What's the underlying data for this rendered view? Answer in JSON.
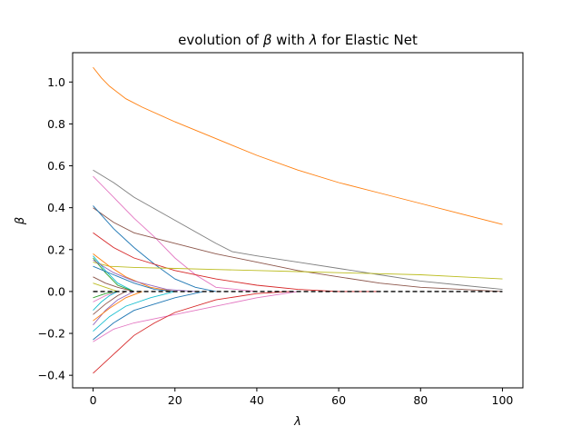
{
  "chart_data": {
    "type": "line",
    "title": "evolution of β with λ for Elastic Net",
    "title_parts": {
      "pre": "evolution of ",
      "beta": "β",
      "mid": " with ",
      "lambda": "λ",
      "post": " for Elastic Net"
    },
    "xlabel": "λ",
    "ylabel": "β",
    "xlim": [
      -5,
      105
    ],
    "ylim": [
      -0.46,
      1.14
    ],
    "xticks": [
      0,
      20,
      40,
      60,
      80,
      100
    ],
    "xtick_labels": [
      "0",
      "20",
      "40",
      "60",
      "80",
      "100"
    ],
    "yticks": [
      -0.4,
      -0.2,
      0.0,
      0.2,
      0.4,
      0.6,
      0.8,
      1.0
    ],
    "ytick_labels": [
      "−0.4",
      "−0.2",
      "0.0",
      "0.2",
      "0.4",
      "0.6",
      "0.8",
      "1.0"
    ],
    "grid": false,
    "reference_line": {
      "y": 0,
      "style": "dashed",
      "color": "#000000"
    },
    "series": [
      {
        "color": "#ff7f0e",
        "x": [
          0,
          2,
          4,
          8,
          12,
          20,
          30,
          40,
          50,
          60,
          70,
          80,
          90,
          100
        ],
        "y": [
          1.07,
          1.02,
          0.98,
          0.92,
          0.88,
          0.81,
          0.73,
          0.65,
          0.58,
          0.52,
          0.47,
          0.42,
          0.37,
          0.32
        ]
      },
      {
        "color": "#7f7f7f",
        "x": [
          0,
          5,
          10,
          20,
          30,
          34,
          40,
          50,
          60,
          70,
          80,
          90,
          100
        ],
        "y": [
          0.58,
          0.52,
          0.45,
          0.34,
          0.23,
          0.19,
          0.17,
          0.14,
          0.11,
          0.08,
          0.05,
          0.03,
          0.01
        ]
      },
      {
        "color": "#e377c2",
        "x": [
          0,
          5,
          10,
          15,
          20,
          25,
          30,
          40
        ],
        "y": [
          0.55,
          0.45,
          0.35,
          0.26,
          0.16,
          0.08,
          0.02,
          0
        ]
      },
      {
        "color": "#8c564b",
        "x": [
          0,
          5,
          10,
          20,
          30,
          40,
          50,
          60,
          70,
          80,
          90,
          100
        ],
        "y": [
          0.4,
          0.33,
          0.28,
          0.23,
          0.18,
          0.14,
          0.1,
          0.07,
          0.04,
          0.02,
          0.01,
          0
        ]
      },
      {
        "color": "#1f77b4",
        "x": [
          0,
          5,
          10,
          15,
          20,
          25,
          30
        ],
        "y": [
          0.41,
          0.3,
          0.21,
          0.13,
          0.06,
          0.02,
          0
        ]
      },
      {
        "color": "#d62728",
        "x": [
          0,
          5,
          10,
          20,
          30,
          40,
          50,
          60,
          70
        ],
        "y": [
          0.28,
          0.21,
          0.16,
          0.1,
          0.06,
          0.03,
          0.01,
          0,
          0
        ]
      },
      {
        "color": "#bcbd22",
        "x": [
          0,
          4,
          10,
          20,
          30,
          40,
          50,
          60,
          70,
          80,
          90,
          100
        ],
        "y": [
          0.14,
          0.12,
          0.115,
          0.11,
          0.105,
          0.1,
          0.095,
          0.09,
          0.085,
          0.08,
          0.07,
          0.06
        ]
      },
      {
        "color": "#ff7f0e",
        "x": [
          0,
          4,
          8,
          14,
          20
        ],
        "y": [
          0.18,
          0.12,
          0.07,
          0.02,
          0
        ]
      },
      {
        "color": "#17becf",
        "x": [
          0,
          3,
          6,
          10
        ],
        "y": [
          0.17,
          0.1,
          0.04,
          0
        ]
      },
      {
        "color": "#2ca02c",
        "x": [
          0,
          3,
          6,
          10
        ],
        "y": [
          0.16,
          0.09,
          0.03,
          0
        ]
      },
      {
        "color": "#9467bd",
        "x": [
          0,
          5,
          10,
          18,
          25
        ],
        "y": [
          0.15,
          0.09,
          0.05,
          0.01,
          0
        ]
      },
      {
        "color": "#1f77b4",
        "x": [
          0,
          5,
          10,
          15,
          20
        ],
        "y": [
          0.12,
          0.08,
          0.04,
          0.01,
          0
        ]
      },
      {
        "color": "#8c564b",
        "x": [
          0,
          3,
          6,
          10
        ],
        "y": [
          0.07,
          0.04,
          0.02,
          0
        ]
      },
      {
        "color": "#bcbd22",
        "x": [
          0,
          3,
          6
        ],
        "y": [
          0.04,
          0.02,
          0
        ]
      },
      {
        "color": "#2ca02c",
        "x": [
          0,
          3,
          6
        ],
        "y": [
          -0.03,
          -0.01,
          0
        ]
      },
      {
        "color": "#e377c2",
        "x": [
          0,
          3,
          6
        ],
        "y": [
          -0.05,
          -0.02,
          0
        ]
      },
      {
        "color": "#17becf",
        "x": [
          0,
          2,
          4,
          6
        ],
        "y": [
          -0.09,
          -0.05,
          -0.02,
          0
        ]
      },
      {
        "color": "#8c564b",
        "x": [
          0,
          3,
          6,
          8
        ],
        "y": [
          -0.11,
          -0.06,
          -0.02,
          0
        ]
      },
      {
        "color": "#9467bd",
        "x": [
          0,
          3,
          6,
          10
        ],
        "y": [
          -0.16,
          -0.09,
          -0.04,
          0
        ]
      },
      {
        "color": "#17becf",
        "x": [
          0,
          4,
          8,
          14,
          20
        ],
        "y": [
          -0.19,
          -0.12,
          -0.07,
          -0.03,
          0
        ]
      },
      {
        "color": "#1f77b4",
        "x": [
          0,
          5,
          10,
          20,
          27
        ],
        "y": [
          -0.23,
          -0.15,
          -0.09,
          -0.03,
          0
        ]
      },
      {
        "color": "#e377c2",
        "x": [
          0,
          5,
          10,
          20,
          30,
          40,
          50
        ],
        "y": [
          -0.24,
          -0.18,
          -0.15,
          -0.11,
          -0.07,
          -0.03,
          0
        ]
      },
      {
        "color": "#d62728",
        "x": [
          0,
          5,
          10,
          15,
          20,
          30,
          40,
          48
        ],
        "y": [
          -0.39,
          -0.3,
          -0.21,
          -0.15,
          -0.1,
          -0.04,
          -0.01,
          0
        ]
      },
      {
        "color": "#ff7f0e",
        "x": [
          0,
          4,
          8,
          12
        ],
        "y": [
          -0.14,
          -0.08,
          -0.03,
          0
        ]
      }
    ]
  }
}
